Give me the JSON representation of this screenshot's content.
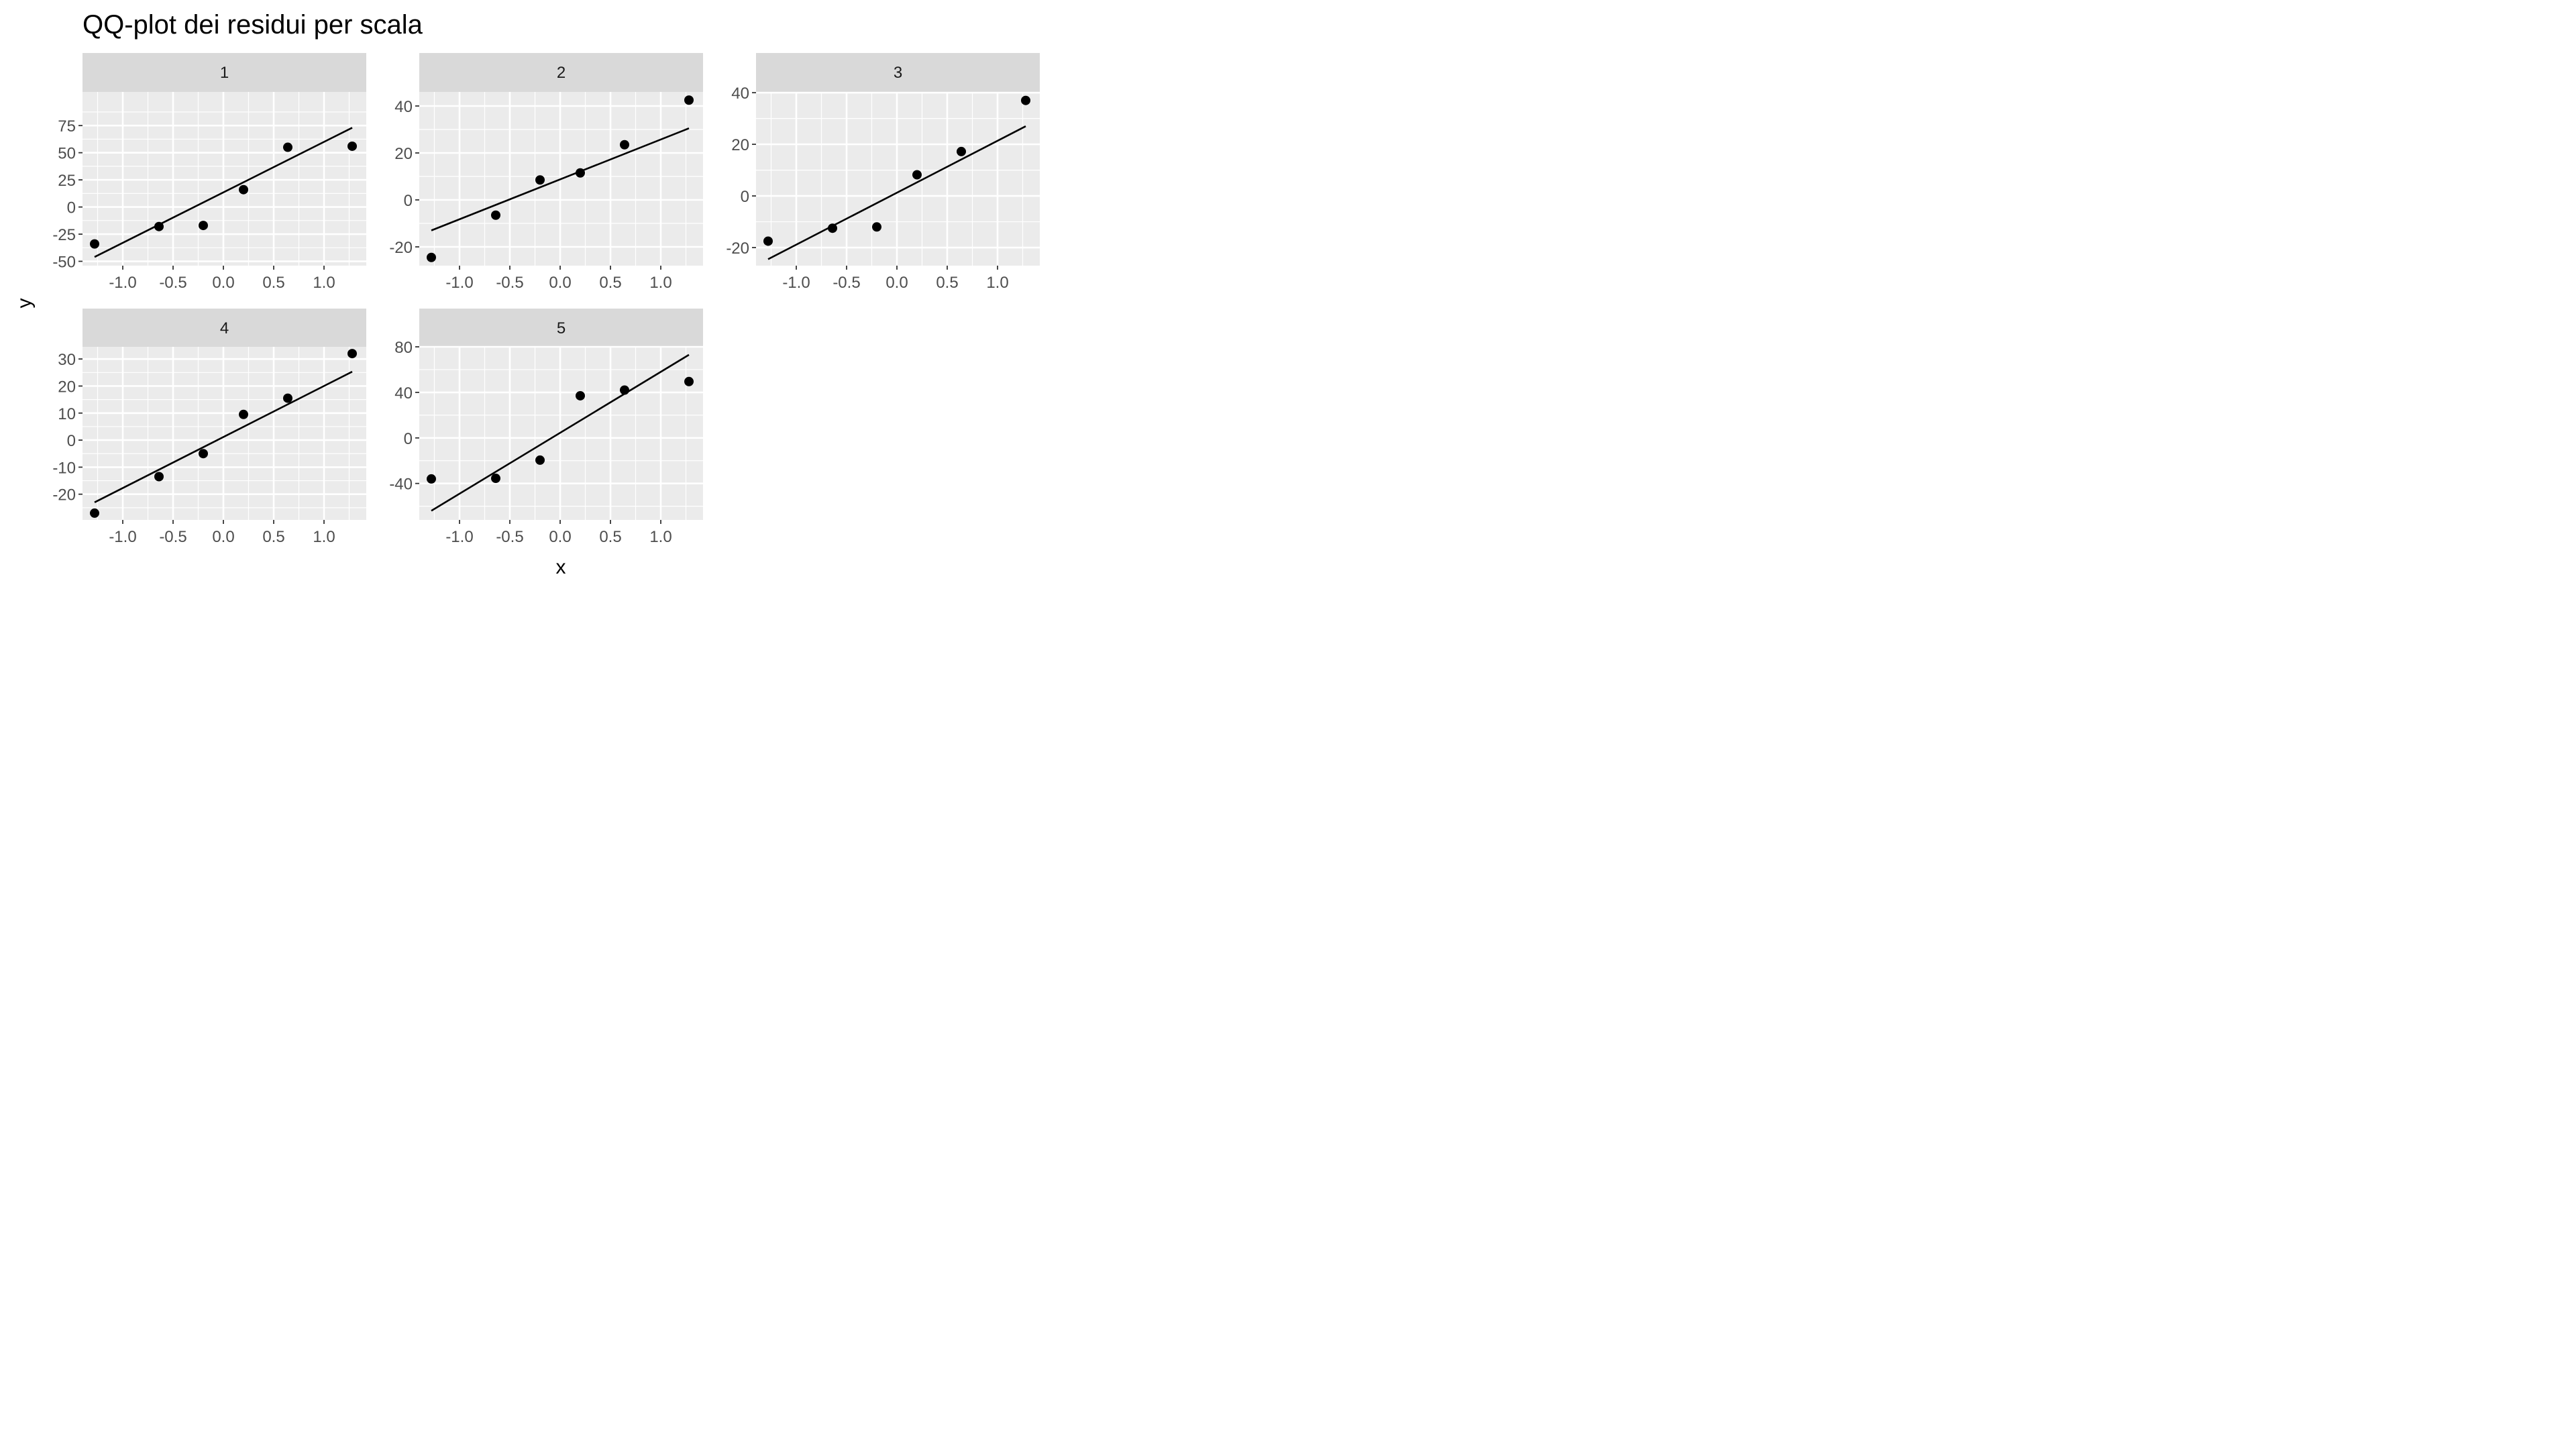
{
  "chart_data": {
    "type": "scatter",
    "title": "QQ-plot dei residui per scala",
    "xlabel": "x",
    "ylabel": "y",
    "grid": true,
    "colors": {
      "panel_background": "#ebebeb",
      "strip_background": "#d9d9d9",
      "gridline": "#ffffff",
      "point": "#000000",
      "line": "#000000",
      "tick_label": "#4d4d4d"
    },
    "x_ticks": [
      "-1.0",
      "-0.5",
      "0.0",
      "0.5",
      "1.0"
    ],
    "x_tick_values": [
      -1.0,
      -0.5,
      0.0,
      0.5,
      1.0
    ],
    "xlim": [
      -1.4,
      1.42
    ],
    "panels": [
      {
        "strip": "1",
        "ylim": [
          -54,
          106
        ],
        "y_ticks": [
          "75",
          "50",
          "25",
          "0",
          "-25",
          "-50"
        ],
        "y_tick_values": [
          75,
          50,
          25,
          0,
          -25,
          -50
        ],
        "points": [
          {
            "x": -1.28,
            "y": -34
          },
          {
            "x": -0.64,
            "y": -18
          },
          {
            "x": -0.2,
            "y": -17
          },
          {
            "x": 0.2,
            "y": 16
          },
          {
            "x": 0.64,
            "y": 55
          },
          {
            "x": 1.28,
            "y": 56
          }
        ],
        "line": [
          {
            "x": -1.28,
            "y": -46
          },
          {
            "x": 1.28,
            "y": 73
          }
        ]
      },
      {
        "strip": "2",
        "ylim": [
          -28,
          46
        ],
        "y_ticks": [
          "40",
          "20",
          "0",
          "-20"
        ],
        "y_tick_values": [
          40,
          20,
          0,
          -20
        ],
        "points": [
          {
            "x": -1.28,
            "y": -24.5
          },
          {
            "x": -0.64,
            "y": -6.5
          },
          {
            "x": -0.2,
            "y": 8.5
          },
          {
            "x": 0.2,
            "y": 11.5
          },
          {
            "x": 0.64,
            "y": 23.5
          },
          {
            "x": 1.28,
            "y": 42.5
          }
        ],
        "line": [
          {
            "x": -1.28,
            "y": -13
          },
          {
            "x": 1.28,
            "y": 30.5
          }
        ]
      },
      {
        "strip": "3",
        "ylim": [
          -27,
          40.3
        ],
        "y_ticks": [
          "40",
          "20",
          "0",
          "-20"
        ],
        "y_tick_values": [
          40,
          20,
          0,
          -20
        ],
        "points": [
          {
            "x": -1.28,
            "y": -17.5
          },
          {
            "x": -0.64,
            "y": -12.5
          },
          {
            "x": -0.2,
            "y": -12
          },
          {
            "x": 0.2,
            "y": 8.2
          },
          {
            "x": 0.64,
            "y": 17.2
          },
          {
            "x": 1.28,
            "y": 37
          }
        ],
        "line": [
          {
            "x": -1.28,
            "y": -24.5
          },
          {
            "x": 1.28,
            "y": 27
          }
        ]
      },
      {
        "strip": "4",
        "ylim": [
          -29.5,
          34.5
        ],
        "y_ticks": [
          "30",
          "20",
          "10",
          "0",
          "-10",
          "-20"
        ],
        "y_tick_values": [
          30,
          20,
          10,
          0,
          -10,
          -20
        ],
        "points": [
          {
            "x": -1.28,
            "y": -27
          },
          {
            "x": -0.64,
            "y": -13.5
          },
          {
            "x": -0.2,
            "y": -5
          },
          {
            "x": 0.2,
            "y": 9.5
          },
          {
            "x": 0.64,
            "y": 15.5
          },
          {
            "x": 1.28,
            "y": 32
          }
        ],
        "line": [
          {
            "x": -1.28,
            "y": -23
          },
          {
            "x": 1.28,
            "y": 25.3
          }
        ]
      },
      {
        "strip": "5",
        "ylim": [
          -72,
          80
        ],
        "y_ticks": [
          "80",
          "40",
          "0",
          "-40"
        ],
        "y_tick_values": [
          80,
          40,
          0,
          -40
        ],
        "points": [
          {
            "x": -1.28,
            "y": -36
          },
          {
            "x": -0.64,
            "y": -35.5
          },
          {
            "x": -0.2,
            "y": -19.5
          },
          {
            "x": 0.2,
            "y": 37
          },
          {
            "x": 0.64,
            "y": 42
          },
          {
            "x": 1.28,
            "y": 49.5
          }
        ],
        "line": [
          {
            "x": -1.28,
            "y": -64
          },
          {
            "x": 1.28,
            "y": 73
          }
        ]
      }
    ]
  }
}
